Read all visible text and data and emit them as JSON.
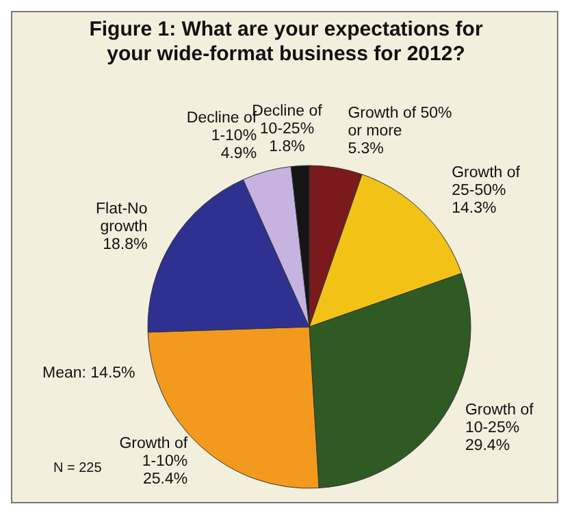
{
  "chart_data": {
    "type": "pie",
    "title": "Figure 1: What are your expectations for your wide-format business for 2012?",
    "categories": [
      "Growth of 50% or more",
      "Growth of 25-50%",
      "Growth of 10-25%",
      "Growth of 1-10%",
      "Flat-No growth",
      "Decline of 1-10%",
      "Decline of 10-25%"
    ],
    "values": [
      5.3,
      14.3,
      29.4,
      25.4,
      18.8,
      4.9,
      1.8
    ],
    "value_labels": [
      "5.3%",
      "14.3%",
      "29.4%",
      "25.4%",
      "18.8%",
      "4.9%",
      "1.8%"
    ],
    "colors": [
      "#7a1a1c",
      "#f2c316",
      "#2f5a24",
      "#f39a1e",
      "#2e3190",
      "#c6b3df",
      "#151515"
    ],
    "annotations": [
      "Mean: 14.5%",
      "N = 225"
    ],
    "legend": false
  }
}
